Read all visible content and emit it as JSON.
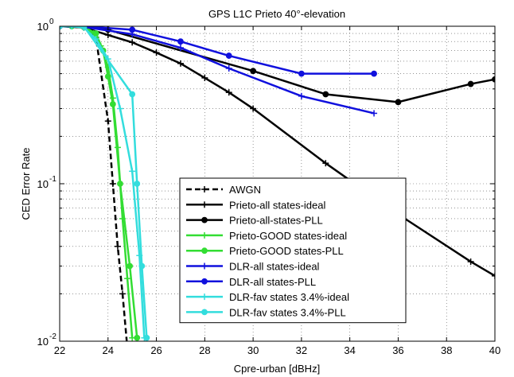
{
  "chart_data": {
    "type": "line",
    "title": "GPS L1C Prieto 40°-elevation",
    "xlabel": "Cpre-urban [dBHz]",
    "ylabel": "CED Error Rate",
    "xlim": [
      22,
      40
    ],
    "ylim": [
      0.01,
      1
    ],
    "yscale": "log",
    "xticks": [
      "22",
      "24",
      "26",
      "28",
      "30",
      "32",
      "34",
      "36",
      "38",
      "40"
    ],
    "yticks": [
      {
        "base": "10",
        "exp": "-2",
        "value": 0.01
      },
      {
        "base": "10",
        "exp": "-1",
        "value": 0.1
      },
      {
        "base": "10",
        "exp": "0",
        "value": 1
      }
    ],
    "grid": true,
    "legend_position": "bottom-center",
    "series": [
      {
        "name": "AWGN",
        "color": "#000000",
        "dash": true,
        "marker": "plus",
        "x": [
          22,
          22.5,
          23,
          23.5,
          24,
          24.2,
          24.4,
          24.6,
          24.8
        ],
        "y": [
          1,
          1,
          0.99,
          0.85,
          0.25,
          0.1,
          0.04,
          0.02,
          0.009
        ]
      },
      {
        "name": "Prieto-all states-ideal",
        "color": "#000000",
        "dash": false,
        "marker": "plus",
        "x": [
          22,
          23,
          24,
          25,
          26,
          27,
          28,
          29,
          30,
          33,
          36,
          39,
          40
        ],
        "y": [
          1,
          0.98,
          0.88,
          0.79,
          0.68,
          0.58,
          0.47,
          0.38,
          0.3,
          0.135,
          0.064,
          0.032,
          0.026
        ]
      },
      {
        "name": "Prieto-all-states-PLL",
        "color": "#000000",
        "dash": false,
        "marker": "dot",
        "x": [
          22,
          23,
          24,
          30,
          33,
          36,
          39,
          40
        ],
        "y": [
          1,
          0.99,
          0.95,
          0.52,
          0.37,
          0.33,
          0.43,
          0.46
        ]
      },
      {
        "name": "Prieto-GOOD states-ideal",
        "color": "#33dd33",
        "dash": false,
        "marker": "plus",
        "x": [
          22,
          22.5,
          23,
          23.4,
          23.7,
          24,
          24.2,
          24.4,
          24.6,
          24.8,
          25
        ],
        "y": [
          1,
          1,
          0.98,
          0.9,
          0.75,
          0.55,
          0.35,
          0.17,
          0.06,
          0.025,
          0.0105
        ]
      },
      {
        "name": "Prieto-GOOD states-PLL",
        "color": "#33dd33",
        "dash": false,
        "marker": "dot",
        "x": [
          22,
          22.5,
          23,
          23.5,
          23.8,
          24,
          24.2,
          24.5,
          24.9,
          25.2
        ],
        "y": [
          1,
          1,
          0.99,
          0.9,
          0.7,
          0.48,
          0.32,
          0.1,
          0.03,
          0.0105
        ]
      },
      {
        "name": "DLR-all states-ideal",
        "color": "#1010dd",
        "dash": false,
        "marker": "plus",
        "x": [
          22,
          23,
          25,
          27,
          29,
          32,
          35
        ],
        "y": [
          1,
          0.99,
          0.89,
          0.73,
          0.54,
          0.36,
          0.28
        ]
      },
      {
        "name": "DLR-all states-PLL",
        "color": "#1010dd",
        "dash": false,
        "marker": "dot",
        "x": [
          22,
          23,
          25,
          27,
          29,
          32,
          35
        ],
        "y": [
          1,
          1,
          0.95,
          0.8,
          0.65,
          0.5,
          0.5
        ]
      },
      {
        "name": "DLR-fav states 3.4%-ideal",
        "color": "#33dddd",
        "dash": false,
        "marker": "plus",
        "x": [
          22,
          22.5,
          23,
          23.5,
          24,
          24.5,
          25,
          25.3,
          25.5
        ],
        "y": [
          1,
          1,
          0.98,
          0.83,
          0.62,
          0.3,
          0.12,
          0.035,
          0.0105
        ]
      },
      {
        "name": "DLR-fav states 3.4%-PLL",
        "color": "#33dddd",
        "dash": false,
        "marker": "dot",
        "x": [
          22,
          23,
          25,
          25.2,
          25.4,
          25.6
        ],
        "y": [
          1,
          1,
          0.37,
          0.1,
          0.03,
          0.0105
        ]
      }
    ]
  }
}
